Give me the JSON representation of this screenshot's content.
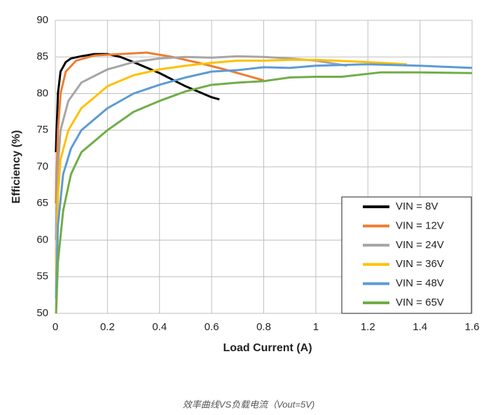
{
  "chart_data": {
    "type": "line",
    "xlabel": "Load Current (A)",
    "ylabel": "Efficiency (%)",
    "caption": "效率曲线VS负载电流（Vout=5V)",
    "xlim": [
      0,
      1.6
    ],
    "ylim": [
      50,
      90
    ],
    "xticks": [
      0,
      0.2,
      0.4,
      0.6,
      0.8,
      1,
      1.2,
      1.4,
      1.6
    ],
    "yticks": [
      50,
      55,
      60,
      65,
      70,
      75,
      80,
      85,
      90
    ],
    "grid": true,
    "legend": "lower right",
    "series": [
      {
        "name": "VIN = 8V",
        "color": "#000000",
        "x": [
          0.002,
          0.01,
          0.02,
          0.04,
          0.06,
          0.1,
          0.15,
          0.2,
          0.25,
          0.3,
          0.4,
          0.5,
          0.6,
          0.63
        ],
        "values": [
          72,
          80,
          83,
          84.3,
          84.8,
          85.1,
          85.4,
          85.4,
          85.0,
          84.3,
          82.8,
          81.0,
          79.5,
          79.2
        ]
      },
      {
        "name": "VIN = 12V",
        "color": "#ed7d31",
        "x": [
          0.002,
          0.01,
          0.02,
          0.04,
          0.08,
          0.15,
          0.25,
          0.35,
          0.45,
          0.55,
          0.65,
          0.75,
          0.8
        ],
        "values": [
          65,
          75,
          80,
          83,
          84.5,
          85.2,
          85.4,
          85.6,
          85.0,
          84.2,
          83.3,
          82.3,
          81.8
        ]
      },
      {
        "name": "VIN = 24V",
        "color": "#a5a5a5",
        "x": [
          0.002,
          0.01,
          0.02,
          0.05,
          0.1,
          0.2,
          0.3,
          0.4,
          0.5,
          0.6,
          0.7,
          0.8,
          0.9,
          1.0,
          1.12
        ],
        "values": [
          60,
          70,
          75,
          79,
          81.5,
          83.3,
          84.3,
          84.8,
          85.0,
          84.9,
          85.1,
          85.0,
          84.8,
          84.5,
          83.8
        ]
      },
      {
        "name": "VIN = 36V",
        "color": "#ffc000",
        "x": [
          0.003,
          0.01,
          0.02,
          0.05,
          0.1,
          0.2,
          0.3,
          0.4,
          0.5,
          0.6,
          0.7,
          0.8,
          0.9,
          1.0,
          1.2,
          1.35
        ],
        "values": [
          55,
          66,
          71,
          75,
          78,
          81,
          82.5,
          83.3,
          83.8,
          84.2,
          84.5,
          84.5,
          84.6,
          84.6,
          84.3,
          84.0
        ]
      },
      {
        "name": "VIN = 48V",
        "color": "#5b9bd5",
        "x": [
          0.003,
          0.01,
          0.03,
          0.06,
          0.1,
          0.2,
          0.3,
          0.4,
          0.5,
          0.6,
          0.7,
          0.8,
          0.9,
          1.0,
          1.2,
          1.4,
          1.6
        ],
        "values": [
          52,
          62,
          69,
          72.5,
          75,
          78,
          80,
          81.2,
          82.2,
          83.0,
          83.2,
          83.6,
          83.5,
          83.8,
          84.0,
          83.8,
          83.5
        ]
      },
      {
        "name": "VIN = 65V",
        "color": "#70ad47",
        "x": [
          0.003,
          0.01,
          0.03,
          0.06,
          0.1,
          0.2,
          0.3,
          0.4,
          0.5,
          0.6,
          0.7,
          0.8,
          0.9,
          1.0,
          1.1,
          1.25,
          1.4,
          1.6
        ],
        "values": [
          50,
          57,
          64,
          69,
          72,
          75,
          77.5,
          79,
          80.3,
          81.2,
          81.5,
          81.7,
          82.2,
          82.3,
          82.3,
          82.9,
          82.9,
          82.8
        ]
      }
    ]
  }
}
